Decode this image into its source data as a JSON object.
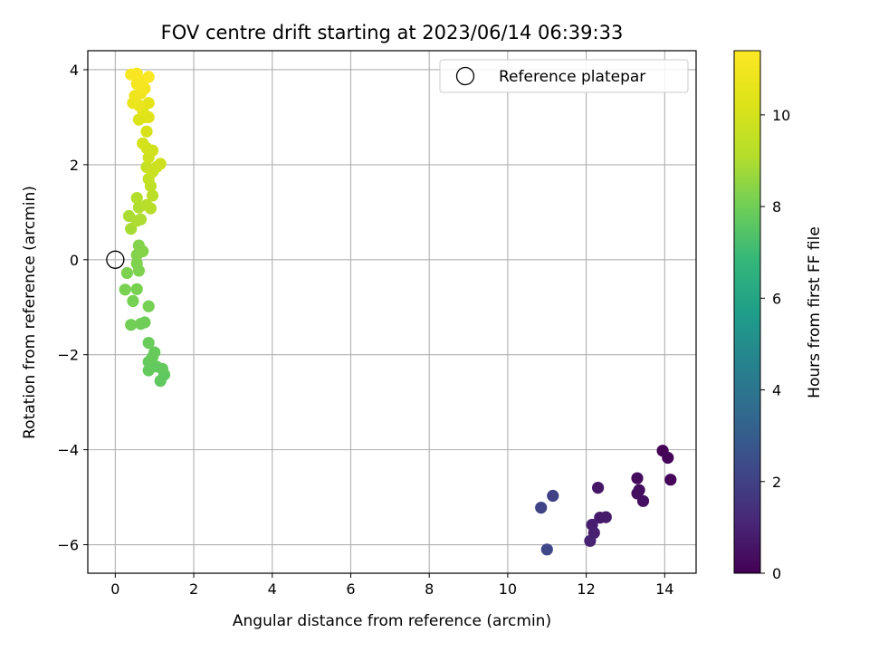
{
  "chart_data": {
    "type": "scatter",
    "title": "FOV centre drift starting at 2023/06/14 06:39:33",
    "xlabel": "Angular distance from reference (arcmin)",
    "ylabel": "Rotation from reference (arcmin)",
    "xlim": [
      -0.7,
      14.8
    ],
    "ylim": [
      -6.6,
      4.4
    ],
    "xticks": [
      0,
      2,
      4,
      6,
      8,
      10,
      12,
      14
    ],
    "yticks": [
      -6,
      -4,
      -2,
      0,
      2,
      4
    ],
    "xtick_labels": [
      "0",
      "2",
      "4",
      "6",
      "8",
      "10",
      "12",
      "14"
    ],
    "ytick_labels": [
      "−6",
      "−4",
      "−2",
      "0",
      "2",
      "4"
    ],
    "grid": true,
    "colormap": "viridis",
    "colorbar": {
      "label": "Hours from first FF file",
      "range": [
        0,
        11.4
      ],
      "ticks": [
        0,
        2,
        4,
        6,
        8,
        10
      ],
      "tick_labels": [
        "0",
        "2",
        "4",
        "6",
        "8",
        "10"
      ]
    },
    "legend": {
      "placement": "top-right",
      "entries": [
        "Reference platepar"
      ]
    },
    "reference_point": {
      "x": 0,
      "y": 0
    },
    "series": [
      {
        "points": [
          {
            "x": 13.95,
            "y": -4.02,
            "c": 0.05
          },
          {
            "x": 14.08,
            "y": -4.17,
            "c": 0.1
          },
          {
            "x": 14.15,
            "y": -4.63,
            "c": 0.15
          },
          {
            "x": 13.3,
            "y": -4.6,
            "c": 0.3
          },
          {
            "x": 13.35,
            "y": -4.85,
            "c": 0.35
          },
          {
            "x": 13.3,
            "y": -4.92,
            "c": 0.4
          },
          {
            "x": 13.45,
            "y": -5.08,
            "c": 0.45
          },
          {
            "x": 12.3,
            "y": -4.8,
            "c": 0.6
          },
          {
            "x": 12.35,
            "y": -5.43,
            "c": 0.7
          },
          {
            "x": 12.5,
            "y": -5.42,
            "c": 0.75
          },
          {
            "x": 12.15,
            "y": -5.58,
            "c": 0.85
          },
          {
            "x": 12.2,
            "y": -5.75,
            "c": 0.9
          },
          {
            "x": 12.1,
            "y": -5.92,
            "c": 1.0
          },
          {
            "x": 11.15,
            "y": -4.97,
            "c": 2.0
          },
          {
            "x": 10.85,
            "y": -5.22,
            "c": 2.1
          },
          {
            "x": 11.0,
            "y": -6.1,
            "c": 2.2
          },
          {
            "x": 1.15,
            "y": -2.55,
            "c": 7.7
          },
          {
            "x": 1.25,
            "y": -2.42,
            "c": 7.7
          },
          {
            "x": 1.2,
            "y": -2.3,
            "c": 7.75
          },
          {
            "x": 1.05,
            "y": -2.25,
            "c": 7.75
          },
          {
            "x": 0.85,
            "y": -2.33,
            "c": 7.8
          },
          {
            "x": 0.85,
            "y": -2.15,
            "c": 7.8
          },
          {
            "x": 0.95,
            "y": -2.05,
            "c": 7.85
          },
          {
            "x": 1.0,
            "y": -1.95,
            "c": 7.85
          },
          {
            "x": 0.85,
            "y": -1.75,
            "c": 7.9
          },
          {
            "x": 0.75,
            "y": -1.32,
            "c": 8.0
          },
          {
            "x": 0.65,
            "y": -1.35,
            "c": 8.0
          },
          {
            "x": 0.4,
            "y": -1.37,
            "c": 8.05
          },
          {
            "x": 0.85,
            "y": -0.98,
            "c": 8.1
          },
          {
            "x": 0.45,
            "y": -0.87,
            "c": 8.1
          },
          {
            "x": 0.25,
            "y": -0.63,
            "c": 8.15
          },
          {
            "x": 0.55,
            "y": -0.62,
            "c": 8.15
          },
          {
            "x": 0.3,
            "y": -0.28,
            "c": 8.2
          },
          {
            "x": 0.6,
            "y": -0.23,
            "c": 8.25
          },
          {
            "x": 0.55,
            "y": -0.08,
            "c": 8.25
          },
          {
            "x": 0.55,
            "y": 0.1,
            "c": 8.3
          },
          {
            "x": 0.6,
            "y": 0.3,
            "c": 8.3
          },
          {
            "x": 0.7,
            "y": 0.18,
            "c": 8.35
          },
          {
            "x": 0.4,
            "y": 0.65,
            "c": 8.9
          },
          {
            "x": 0.35,
            "y": 0.92,
            "c": 8.95
          },
          {
            "x": 0.55,
            "y": 0.82,
            "c": 9.0
          },
          {
            "x": 0.65,
            "y": 0.85,
            "c": 9.0
          },
          {
            "x": 0.6,
            "y": 1.1,
            "c": 9.05
          },
          {
            "x": 0.55,
            "y": 1.3,
            "c": 9.1
          },
          {
            "x": 0.8,
            "y": 1.15,
            "c": 9.15
          },
          {
            "x": 0.9,
            "y": 1.08,
            "c": 9.2
          },
          {
            "x": 0.95,
            "y": 1.35,
            "c": 9.3
          },
          {
            "x": 0.9,
            "y": 1.55,
            "c": 9.4
          },
          {
            "x": 0.85,
            "y": 1.7,
            "c": 9.5
          },
          {
            "x": 0.8,
            "y": 1.95,
            "c": 9.6
          },
          {
            "x": 0.95,
            "y": 1.85,
            "c": 9.7
          },
          {
            "x": 1.05,
            "y": 1.95,
            "c": 9.75
          },
          {
            "x": 1.15,
            "y": 2.02,
            "c": 9.8
          },
          {
            "x": 0.85,
            "y": 2.15,
            "c": 9.85
          },
          {
            "x": 0.95,
            "y": 2.3,
            "c": 9.9
          },
          {
            "x": 0.8,
            "y": 2.35,
            "c": 9.95
          },
          {
            "x": 0.7,
            "y": 2.45,
            "c": 10.0
          },
          {
            "x": 0.8,
            "y": 2.7,
            "c": 10.1
          },
          {
            "x": 0.6,
            "y": 2.95,
            "c": 10.2
          },
          {
            "x": 0.75,
            "y": 3.0,
            "c": 10.3
          },
          {
            "x": 0.85,
            "y": 3.0,
            "c": 10.35
          },
          {
            "x": 0.7,
            "y": 3.15,
            "c": 10.45
          },
          {
            "x": 0.85,
            "y": 3.3,
            "c": 10.55
          },
          {
            "x": 0.45,
            "y": 3.3,
            "c": 10.7
          },
          {
            "x": 0.6,
            "y": 3.25,
            "c": 10.75
          },
          {
            "x": 0.5,
            "y": 3.45,
            "c": 10.85
          },
          {
            "x": 0.65,
            "y": 3.5,
            "c": 10.95
          },
          {
            "x": 0.75,
            "y": 3.6,
            "c": 11.05
          },
          {
            "x": 0.55,
            "y": 3.7,
            "c": 11.1
          },
          {
            "x": 0.7,
            "y": 3.75,
            "c": 11.15
          },
          {
            "x": 0.4,
            "y": 3.9,
            "c": 11.2
          },
          {
            "x": 0.55,
            "y": 3.92,
            "c": 11.25
          },
          {
            "x": 0.85,
            "y": 3.85,
            "c": 11.3
          }
        ]
      }
    ]
  }
}
